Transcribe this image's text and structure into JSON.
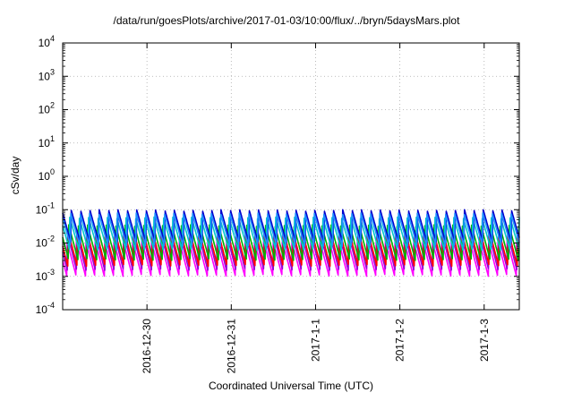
{
  "chart_data": {
    "type": "line",
    "title": "/data/run/goesPlots/archive/2017-01-03/10:00/flux/../bryn/5daysMars.plot",
    "xlabel": "Coordinated Universal Time (UTC)",
    "ylabel": "cSv/day",
    "y_scale": "log",
    "ylim": [
      0.0001,
      10000
    ],
    "y_ticks": [
      {
        "base": "10",
        "exp": "-4"
      },
      {
        "base": "10",
        "exp": "-3"
      },
      {
        "base": "10",
        "exp": "-2"
      },
      {
        "base": "10",
        "exp": "-1"
      },
      {
        "base": "10",
        "exp": "0"
      },
      {
        "base": "10",
        "exp": "1"
      },
      {
        "base": "10",
        "exp": "2"
      },
      {
        "base": "10",
        "exp": "3"
      },
      {
        "base": "10",
        "exp": "4"
      }
    ],
    "xlim": [
      "2016-12-29 00:00",
      "2017-01-03 10:00"
    ],
    "x_ticks": [
      "2016-12-30",
      "2016-12-31",
      "2017-1-1",
      "2017-1-2",
      "2017-1-3"
    ],
    "x_tick_dates": [
      "2016-12-30",
      "2016-12-31",
      "2017-01-01",
      "2017-01-02",
      "2017-01-03"
    ],
    "grid": true,
    "cycles_per_day": 9,
    "series": [
      {
        "color": "#ff00ff",
        "peak": 0.012,
        "trough": 0.001,
        "phase": 0.55
      },
      {
        "color": "#9400d3",
        "peak": 0.02,
        "trough": 0.0015,
        "phase": 0.5
      },
      {
        "color": "#ff0000",
        "peak": 0.025,
        "trough": 0.002,
        "phase": 0.45
      },
      {
        "color": "#00b000",
        "peak": 0.035,
        "trough": 0.003,
        "phase": 0.35
      },
      {
        "color": "#00c8c8",
        "peak": 0.06,
        "trough": 0.006,
        "phase": 0.25
      },
      {
        "color": "#0000cd",
        "peak": 0.1,
        "trough": 0.01,
        "phase": 0.1
      },
      {
        "color": "#1e90ff",
        "peak": 0.08,
        "trough": 0.008,
        "phase": 0.15
      }
    ]
  }
}
